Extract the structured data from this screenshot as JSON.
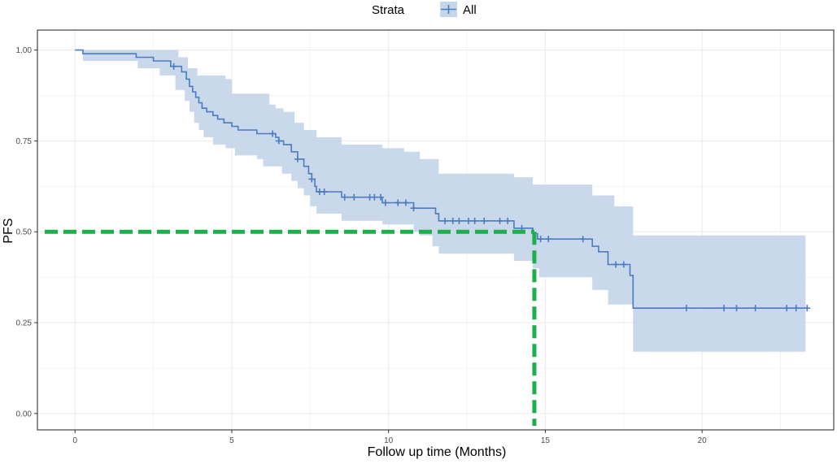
{
  "chart_data": {
    "type": "line",
    "subtype": "kaplan-meier",
    "title": "",
    "xlabel": "Follow up time (Months)",
    "ylabel": "PFS",
    "xlim": [
      -1.2,
      24.2
    ],
    "ylim": [
      -0.045,
      1.055
    ],
    "x_ticks": [
      0,
      5,
      10,
      15,
      20
    ],
    "x_tick_labels": [
      "0",
      "5",
      "10",
      "15",
      "20"
    ],
    "y_ticks": [
      0,
      0.25,
      0.5,
      0.75,
      1
    ],
    "y_tick_labels": [
      "0.00",
      "0.25",
      "0.50",
      "0.75",
      "1.00"
    ],
    "grid": true,
    "legend": {
      "position": "top",
      "title": "Strata",
      "entries": [
        "All"
      ]
    },
    "series": [
      {
        "name": "All",
        "color": "#4a7cc0",
        "ci_color": "#c6d6ea",
        "steps": [
          [
            0,
            1.0
          ],
          [
            0.25,
            0.99
          ],
          [
            1.95,
            0.98
          ],
          [
            2.5,
            0.97
          ],
          [
            3.05,
            0.955
          ],
          [
            3.4,
            0.94
          ],
          [
            3.55,
            0.92
          ],
          [
            3.65,
            0.9
          ],
          [
            3.75,
            0.885
          ],
          [
            3.85,
            0.87
          ],
          [
            3.95,
            0.855
          ],
          [
            4.05,
            0.84
          ],
          [
            4.2,
            0.83
          ],
          [
            4.4,
            0.82
          ],
          [
            4.55,
            0.81
          ],
          [
            4.75,
            0.8
          ],
          [
            5.0,
            0.79
          ],
          [
            5.2,
            0.78
          ],
          [
            5.8,
            0.77
          ],
          [
            6.4,
            0.76
          ],
          [
            6.5,
            0.75
          ],
          [
            6.65,
            0.74
          ],
          [
            6.9,
            0.72
          ],
          [
            7.1,
            0.7
          ],
          [
            7.3,
            0.68
          ],
          [
            7.45,
            0.66
          ],
          [
            7.55,
            0.645
          ],
          [
            7.65,
            0.625
          ],
          [
            7.7,
            0.61
          ],
          [
            8.5,
            0.595
          ],
          [
            9.8,
            0.58
          ],
          [
            10.8,
            0.565
          ],
          [
            11.5,
            0.55
          ],
          [
            11.6,
            0.53
          ],
          [
            14.0,
            0.51
          ],
          [
            14.6,
            0.495
          ],
          [
            14.75,
            0.48
          ],
          [
            16.5,
            0.46
          ],
          [
            16.7,
            0.445
          ],
          [
            17.0,
            0.41
          ],
          [
            17.7,
            0.38
          ],
          [
            17.8,
            0.29
          ],
          [
            23.3,
            0.29
          ]
        ],
        "ci_lower": [
          [
            0,
            1.0
          ],
          [
            0.25,
            0.97
          ],
          [
            2.0,
            0.95
          ],
          [
            2.7,
            0.93
          ],
          [
            3.2,
            0.89
          ],
          [
            3.5,
            0.86
          ],
          [
            3.65,
            0.83
          ],
          [
            3.8,
            0.8
          ],
          [
            3.95,
            0.78
          ],
          [
            4.1,
            0.76
          ],
          [
            4.4,
            0.74
          ],
          [
            4.8,
            0.73
          ],
          [
            5.1,
            0.71
          ],
          [
            5.8,
            0.7
          ],
          [
            6.0,
            0.68
          ],
          [
            6.6,
            0.66
          ],
          [
            6.9,
            0.64
          ],
          [
            7.1,
            0.62
          ],
          [
            7.3,
            0.6
          ],
          [
            7.5,
            0.57
          ],
          [
            7.7,
            0.55
          ],
          [
            8.5,
            0.53
          ],
          [
            9.8,
            0.52
          ],
          [
            10.8,
            0.5
          ],
          [
            11.0,
            0.49
          ],
          [
            11.4,
            0.46
          ],
          [
            11.6,
            0.44
          ],
          [
            14.0,
            0.42
          ],
          [
            14.6,
            0.4
          ],
          [
            14.8,
            0.375
          ],
          [
            16.5,
            0.34
          ],
          [
            17.0,
            0.3
          ],
          [
            17.8,
            0.17
          ],
          [
            23.3,
            0.17
          ]
        ],
        "ci_upper": [
          [
            0,
            1.0
          ],
          [
            3.2,
            1.0
          ],
          [
            3.3,
            0.98
          ],
          [
            3.6,
            0.95
          ],
          [
            3.9,
            0.93
          ],
          [
            4.8,
            0.92
          ],
          [
            5.0,
            0.88
          ],
          [
            6.2,
            0.85
          ],
          [
            6.4,
            0.84
          ],
          [
            6.65,
            0.83
          ],
          [
            7.0,
            0.8
          ],
          [
            7.3,
            0.78
          ],
          [
            7.7,
            0.76
          ],
          [
            8.5,
            0.74
          ],
          [
            9.8,
            0.73
          ],
          [
            10.5,
            0.72
          ],
          [
            11.0,
            0.7
          ],
          [
            11.6,
            0.66
          ],
          [
            14.0,
            0.65
          ],
          [
            14.6,
            0.63
          ],
          [
            16.5,
            0.6
          ],
          [
            17.2,
            0.57
          ],
          [
            17.8,
            0.49
          ],
          [
            23.3,
            0.49
          ]
        ],
        "censor_times": [
          3.15,
          6.3,
          6.5,
          7.1,
          7.55,
          7.8,
          7.95,
          8.6,
          8.9,
          9.4,
          9.55,
          9.75,
          9.9,
          10.3,
          10.55,
          10.8,
          11.8,
          12.05,
          12.25,
          12.55,
          12.75,
          13.05,
          13.55,
          13.8,
          14.25,
          14.85,
          15.1,
          16.2,
          17.25,
          17.5,
          19.5,
          20.7,
          21.1,
          21.7,
          22.7,
          23.0,
          23.35
        ]
      }
    ],
    "reference_lines": [
      {
        "orientation": "horizontal",
        "y": 0.5,
        "x_from": -1.2,
        "x_to": 14.65,
        "color": "#1ab04a",
        "style": "dashed"
      },
      {
        "orientation": "vertical",
        "x": 14.65,
        "y_from": 0.5,
        "y_to": -0.045,
        "color": "#1ab04a",
        "style": "dashed"
      }
    ]
  }
}
